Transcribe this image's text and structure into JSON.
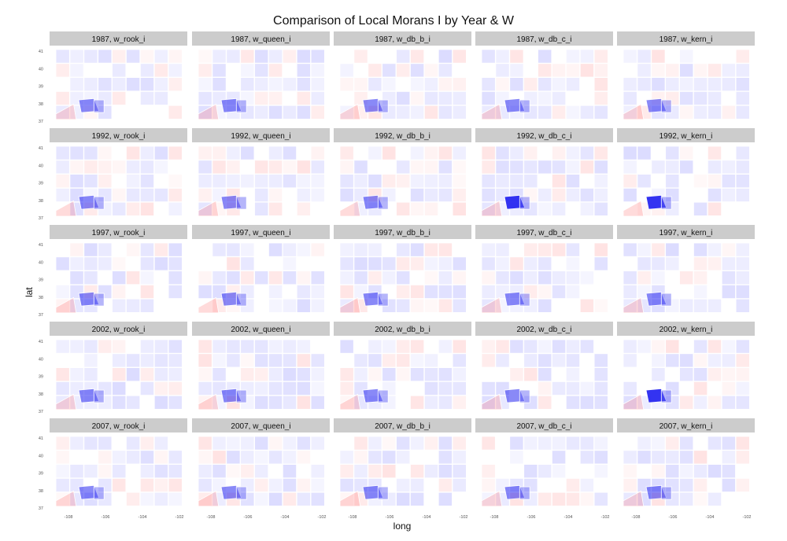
{
  "chart_data": {
    "type": "heatmap",
    "title": "Comparison of Local Morans I by Year & W",
    "xlabel": "long",
    "ylabel": "lat",
    "x_ticks": [
      "-108",
      "-106",
      "-104",
      "-102"
    ],
    "y_ticks": [
      "41",
      "40",
      "39",
      "38",
      "37"
    ],
    "xlim": [
      -109.1,
      -102.0
    ],
    "ylim": [
      36.9,
      41.1
    ],
    "years": [
      "1987",
      "1992",
      "1997",
      "2002",
      "2007"
    ],
    "weights": [
      "w_rook_i",
      "w_queen_i",
      "w_db_b_i",
      "w_db_c_i",
      "w_kern_i"
    ],
    "facets": [
      {
        "label": "1987, w_rook_i"
      },
      {
        "label": "1987, w_queen_i"
      },
      {
        "label": "1987, w_db_b_i"
      },
      {
        "label": "1987, w_db_c_i"
      },
      {
        "label": "1987, w_kern_i"
      },
      {
        "label": "1992, w_rook_i"
      },
      {
        "label": "1992, w_queen_i"
      },
      {
        "label": "1992, w_db_b_i"
      },
      {
        "label": "1992, w_db_c_i"
      },
      {
        "label": "1992, w_kern_i"
      },
      {
        "label": "1997, w_rook_i"
      },
      {
        "label": "1997, w_queen_i"
      },
      {
        "label": "1997, w_db_b_i"
      },
      {
        "label": "1997, w_db_c_i"
      },
      {
        "label": "1997, w_kern_i"
      },
      {
        "label": "2002, w_rook_i"
      },
      {
        "label": "2002, w_queen_i"
      },
      {
        "label": "2002, w_db_b_i"
      },
      {
        "label": "2002, w_db_c_i"
      },
      {
        "label": "2002, w_kern_i"
      },
      {
        "label": "2007, w_rook_i"
      },
      {
        "label": "2007, w_queen_i"
      },
      {
        "label": "2007, w_db_b_i"
      },
      {
        "label": "2007, w_db_c_i"
      },
      {
        "label": "2007, w_kern_i"
      }
    ],
    "colors": {
      "strip": "#cccccc",
      "high": "#0000ff",
      "mid": "#ffffff",
      "low": "#ff0000",
      "border": "#ffffff"
    }
  }
}
